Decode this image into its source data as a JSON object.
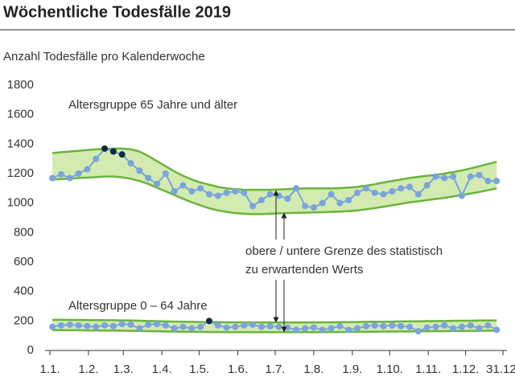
{
  "chart_data": {
    "type": "line",
    "title": "Wöchentliche Todesfälle 2019",
    "subtitle": "Anzahl Todesfälle pro Kalenderwoche",
    "annotations": [
      "Altersgruppe 65 Jahre und älter",
      "Altersgruppe 0 – 64 Jahre",
      "obere / untere Grenze des statistisch",
      "zu erwartenden Werts"
    ],
    "xlim": [
      1,
      365
    ],
    "xticks": [
      {
        "value": 1,
        "label": "1.1."
      },
      {
        "value": 32,
        "label": "1.2."
      },
      {
        "value": 60,
        "label": "1.3."
      },
      {
        "value": 91,
        "label": "1.4."
      },
      {
        "value": 121,
        "label": "1.5."
      },
      {
        "value": 152,
        "label": "1.6."
      },
      {
        "value": 182,
        "label": "1.7."
      },
      {
        "value": 213,
        "label": "1.8."
      },
      {
        "value": 244,
        "label": "1.9."
      },
      {
        "value": 274,
        "label": "1.10."
      },
      {
        "value": 305,
        "label": "1.11."
      },
      {
        "value": 335,
        "label": "1.12."
      },
      {
        "value": 365,
        "label": "31.12."
      }
    ],
    "ylim": [
      0,
      1800
    ],
    "yticks": [
      0,
      200,
      400,
      600,
      800,
      1000,
      1200,
      1400,
      1600,
      1800
    ],
    "grid": false,
    "x": [
      3,
      10,
      17,
      24,
      31,
      38,
      45,
      52,
      59,
      66,
      73,
      80,
      87,
      94,
      101,
      108,
      115,
      122,
      129,
      136,
      143,
      150,
      157,
      164,
      171,
      178,
      185,
      192,
      199,
      206,
      213,
      220,
      227,
      234,
      241,
      248,
      255,
      262,
      269,
      276,
      283,
      290,
      297,
      304,
      311,
      318,
      325,
      332,
      339,
      346,
      353,
      360
    ],
    "band_color": "#6ab43e",
    "band_fill": "#d3eab0",
    "bands": [
      {
        "upper": [
          1340,
          1345,
          1350,
          1355,
          1360,
          1365,
          1368,
          1370,
          1370,
          1365,
          1350,
          1320,
          1285,
          1250,
          1215,
          1185,
          1160,
          1140,
          1125,
          1110,
          1100,
          1095,
          1090,
          1090,
          1090,
          1090,
          1092,
          1095,
          1098,
          1100,
          1100,
          1100,
          1100,
          1102,
          1105,
          1110,
          1118,
          1128,
          1140,
          1150,
          1160,
          1170,
          1178,
          1185,
          1192,
          1200,
          1210,
          1222,
          1235,
          1250,
          1265,
          1280
        ],
        "lower": [
          1160,
          1163,
          1166,
          1170,
          1173,
          1176,
          1180,
          1180,
          1175,
          1165,
          1150,
          1130,
          1105,
          1080,
          1055,
          1030,
          1005,
          985,
          965,
          950,
          940,
          932,
          928,
          925,
          925,
          928,
          930,
          932,
          934,
          935,
          937,
          938,
          940,
          942,
          945,
          950,
          958,
          966,
          975,
          985,
          995,
          1005,
          1012,
          1020,
          1028,
          1035,
          1045,
          1055,
          1065,
          1075,
          1088,
          1100
        ]
      },
      {
        "upper": [
          208,
          208,
          207,
          207,
          206,
          206,
          205,
          205,
          204,
          203,
          202,
          200,
          199,
          197,
          196,
          195,
          194,
          193,
          192,
          192,
          191,
          191,
          190,
          190,
          190,
          190,
          190,
          190,
          190,
          190,
          190,
          191,
          191,
          192,
          192,
          193,
          194,
          195,
          195,
          196,
          197,
          198,
          198,
          199,
          200,
          200,
          201,
          202,
          202,
          203,
          203,
          204
        ],
        "lower": [
          138,
          138,
          137,
          137,
          136,
          136,
          135,
          135,
          134,
          133,
          132,
          131,
          130,
          129,
          128,
          127,
          126,
          126,
          125,
          125,
          124,
          124,
          124,
          124,
          124,
          124,
          124,
          124,
          124,
          124,
          124,
          125,
          125,
          125,
          126,
          126,
          127,
          127,
          128,
          128,
          129,
          129,
          130,
          130,
          131,
          131,
          132,
          132,
          133,
          133,
          134,
          134
        ]
      }
    ],
    "highlight_color": "#0e2a44",
    "series": [
      {
        "color": "#7aa4de",
        "values": [
          1170,
          1195,
          1170,
          1200,
          1230,
          1300,
          1370,
          1350,
          1330,
          1270,
          1220,
          1170,
          1130,
          1200,
          1080,
          1120,
          1080,
          1100,
          1060,
          1050,
          1070,
          1080,
          1070,
          980,
          1020,
          1060,
          1050,
          1030,
          1100,
          980,
          970,
          1000,
          1060,
          1000,
          1020,
          1070,
          1100,
          1070,
          1060,
          1080,
          1100,
          1110,
          1060,
          1120,
          1180,
          1170,
          1180,
          1050,
          1180,
          1190,
          1150,
          1150
        ],
        "highlighted": [
          6,
          7,
          8
        ]
      },
      {
        "color": "#7aa4de",
        "values": [
          160,
          170,
          175,
          170,
          165,
          160,
          170,
          165,
          180,
          175,
          150,
          175,
          180,
          170,
          150,
          160,
          150,
          160,
          200,
          170,
          155,
          160,
          170,
          175,
          160,
          165,
          160,
          155,
          140,
          150,
          155,
          140,
          150,
          165,
          140,
          150,
          165,
          170,
          165,
          170,
          165,
          160,
          130,
          155,
          160,
          170,
          150,
          160,
          170,
          150,
          170,
          140
        ],
        "highlighted": [
          18
        ]
      }
    ]
  }
}
